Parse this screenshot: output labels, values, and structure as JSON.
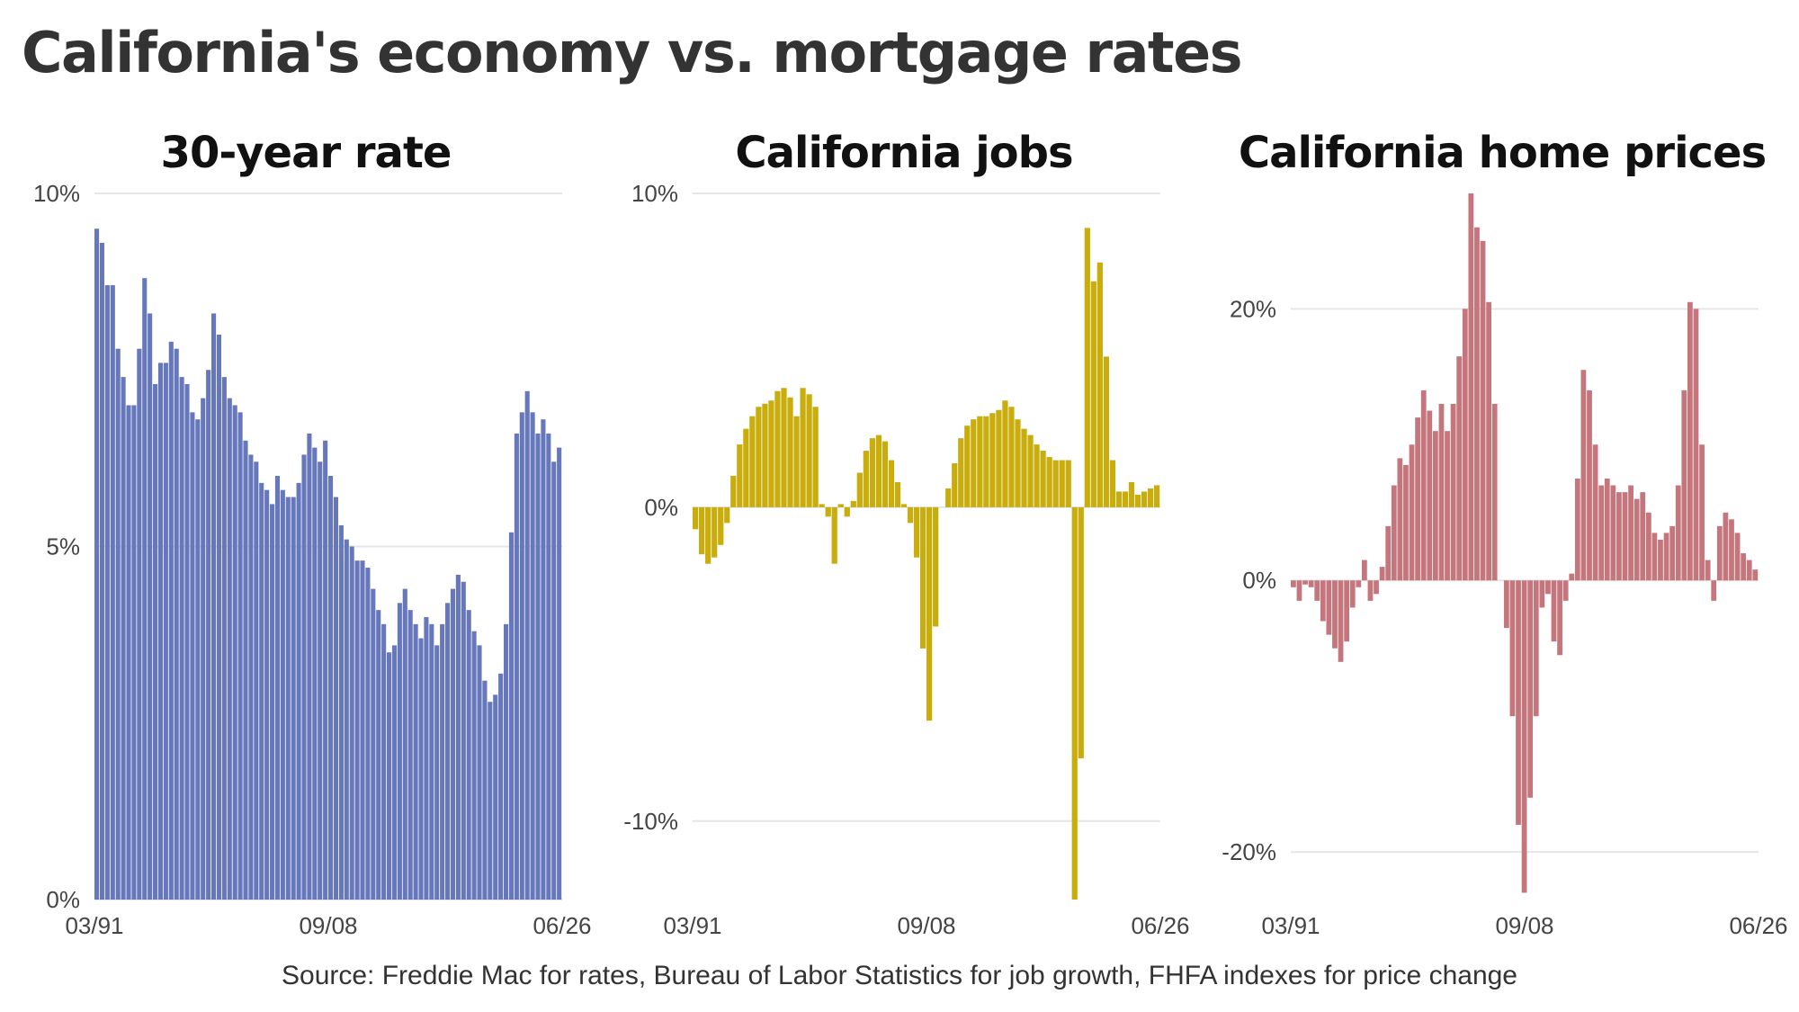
{
  "title": "California's economy vs. mortgage rates",
  "source": "Source: Freddie Mac for rates, Bureau of Labor Statistics for job growth, FHFA indexes for price change",
  "chart_data": [
    {
      "type": "bar",
      "title": "30-year rate",
      "color": "#6677bb",
      "x_start": "03/91",
      "x_end": "06/26",
      "xticks": [
        "03/91",
        "09/08",
        "06/26"
      ],
      "ylim": [
        0,
        10
      ],
      "yticks": [
        0,
        5,
        10
      ],
      "ytick_labels": [
        "0%",
        "5%",
        "10%"
      ],
      "grid": true,
      "values": [
        9.5,
        9.3,
        8.7,
        8.7,
        7.8,
        7.4,
        7.0,
        7.0,
        7.8,
        8.8,
        8.3,
        7.3,
        7.6,
        7.6,
        7.9,
        7.8,
        7.4,
        7.3,
        6.9,
        6.8,
        7.1,
        7.5,
        8.3,
        8.0,
        7.4,
        7.1,
        7.0,
        6.9,
        6.5,
        6.3,
        6.2,
        5.9,
        5.8,
        5.6,
        6.0,
        5.8,
        5.7,
        5.7,
        5.9,
        6.3,
        6.6,
        6.4,
        6.2,
        6.5,
        6.0,
        5.7,
        5.3,
        5.1,
        5.0,
        4.8,
        4.8,
        4.7,
        4.4,
        4.1,
        3.9,
        3.5,
        3.6,
        4.2,
        4.4,
        4.1,
        3.9,
        3.7,
        4.0,
        3.9,
        3.6,
        3.9,
        4.2,
        4.4,
        4.6,
        4.5,
        4.1,
        3.8,
        3.6,
        3.1,
        2.8,
        2.9,
        3.2,
        3.9,
        5.2,
        6.6,
        6.9,
        7.2,
        6.9,
        6.6,
        6.8,
        6.6,
        6.2,
        6.4
      ]
    },
    {
      "type": "bar",
      "title": "California jobs",
      "color": "#c8ad0c",
      "x_start": "03/91",
      "x_end": "06/26",
      "xticks": [
        "03/91",
        "09/08",
        "06/26"
      ],
      "ylim": [
        -12.5,
        10
      ],
      "yticks": [
        -10,
        0,
        10
      ],
      "ytick_labels": [
        "-10%",
        "0%",
        "10%"
      ],
      "grid": true,
      "values": [
        -0.7,
        -1.5,
        -1.8,
        -1.6,
        -1.2,
        -0.5,
        1.0,
        2.0,
        2.5,
        2.9,
        3.2,
        3.3,
        3.4,
        3.7,
        3.8,
        3.5,
        2.9,
        3.8,
        3.6,
        3.2,
        0.1,
        -0.3,
        -1.8,
        0.1,
        -0.3,
        0.2,
        1.1,
        1.8,
        2.2,
        2.3,
        2.1,
        1.5,
        0.8,
        0.1,
        -0.5,
        -1.6,
        -4.5,
        -6.8,
        -3.8,
        0.0,
        0.6,
        1.4,
        2.2,
        2.6,
        2.8,
        2.9,
        2.9,
        3.0,
        3.1,
        3.4,
        3.2,
        2.8,
        2.5,
        2.3,
        2.0,
        1.8,
        1.6,
        1.5,
        1.5,
        1.5,
        -12.5,
        -8.0,
        8.9,
        7.2,
        7.8,
        4.8,
        1.5,
        0.5,
        0.5,
        0.8,
        0.4,
        0.5,
        0.6,
        0.7
      ]
    },
    {
      "type": "bar",
      "title": "California home prices",
      "color": "#c4767c",
      "x_start": "03/91",
      "x_end": "06/26",
      "xticks": [
        "03/91",
        "09/08",
        "06/26"
      ],
      "ylim": [
        -23.5,
        28.5
      ],
      "yticks": [
        -20,
        0,
        20
      ],
      "ytick_labels": [
        "-20%",
        "0%",
        "20%"
      ],
      "grid": true,
      "values": [
        -0.5,
        -1.5,
        -0.3,
        -0.5,
        -1.5,
        -3.0,
        -4.0,
        -5.0,
        -6.0,
        -4.5,
        -2.0,
        -0.5,
        1.5,
        -1.5,
        -1.0,
        1.0,
        4.0,
        7.0,
        9.0,
        8.5,
        10.0,
        12.0,
        14.0,
        12.5,
        11.0,
        13.0,
        11.0,
        13.0,
        16.5,
        20.0,
        28.5,
        26.0,
        25.0,
        20.5,
        13.0,
        0.0,
        -3.5,
        -10.0,
        -18.0,
        -23.0,
        -16.0,
        -10.0,
        -2.0,
        -1.0,
        -4.5,
        -5.5,
        -1.5,
        0.5,
        7.5,
        15.5,
        14.0,
        10.0,
        7.0,
        7.5,
        7.0,
        6.5,
        6.5,
        7.0,
        6.0,
        6.5,
        5.0,
        3.5,
        3.0,
        3.5,
        4.0,
        7.0,
        14.0,
        20.5,
        20.0,
        10.0,
        1.5,
        -1.5,
        4.0,
        5.0,
        4.5,
        3.5,
        2.0,
        1.5,
        0.8
      ]
    }
  ]
}
